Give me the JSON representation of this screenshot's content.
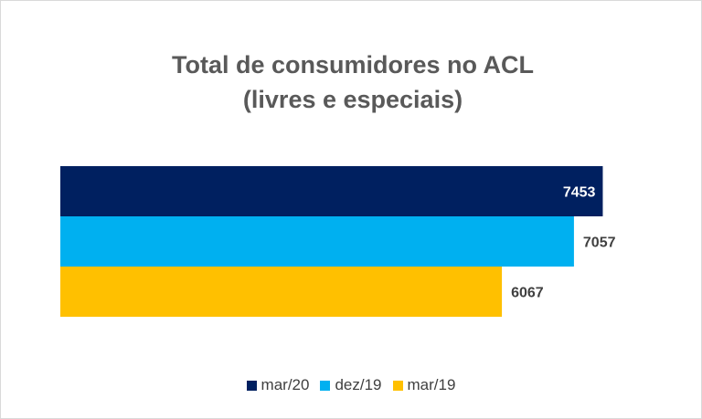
{
  "chart_data": {
    "type": "bar",
    "orientation": "horizontal",
    "title": [
      "Total de consumidores no ACL",
      "(livres e especiais)"
    ],
    "xlim": [
      0,
      8000
    ],
    "grid": false,
    "legend_position": "bottom",
    "series": [
      {
        "name": "mar/20",
        "value": 7453,
        "color": "#002060",
        "label_color": "#ffffff"
      },
      {
        "name": "dez/19",
        "value": 7057,
        "color": "#00b0f0",
        "label_color": "#404040"
      },
      {
        "name": "mar/19",
        "value": 6067,
        "color": "#ffc000",
        "label_color": "#404040"
      }
    ]
  }
}
